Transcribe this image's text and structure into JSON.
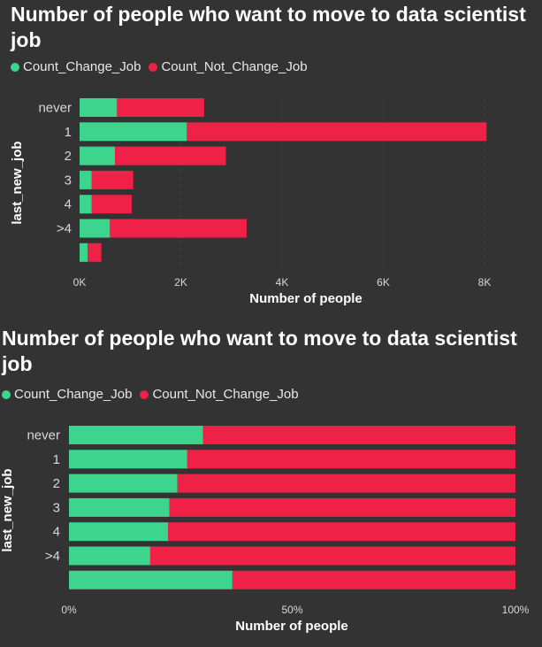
{
  "colors": {
    "change": "#3dd48e",
    "not_change": "#ef2146",
    "grid": "#4a4a4a",
    "tick": "#d8d8d8"
  },
  "chart_data": [
    {
      "type": "bar",
      "orientation": "horizontal",
      "stacked": true,
      "title": "Number of people who want to move to data scientist job",
      "xlabel": "Number of people",
      "ylabel": "last_new_job",
      "categories": [
        "never",
        "1",
        "2",
        "3",
        "4",
        ">4",
        ""
      ],
      "series": [
        {
          "name": "Count_Change_Job",
          "values": [
            740,
            2120,
            700,
            240,
            240,
            600,
            160
          ]
        },
        {
          "name": "Count_Not_Change_Job",
          "values": [
            1720,
            5920,
            2190,
            820,
            790,
            2700,
            270
          ]
        }
      ],
      "xlim": [
        0,
        8000
      ],
      "xticks": [
        "0K",
        "2K",
        "4K",
        "6K",
        "8K"
      ],
      "xtick_values": [
        0,
        2000,
        4000,
        6000,
        8000
      ],
      "grid": true,
      "legend_position": "top-left"
    },
    {
      "type": "bar",
      "orientation": "horizontal",
      "stacked": true,
      "percent": true,
      "title": "Number of people who want to move to data scientist job",
      "xlabel": "Number of people",
      "ylabel": "last_new_job",
      "categories": [
        "never",
        "1",
        "2",
        "3",
        "4",
        ">4",
        ""
      ],
      "series": [
        {
          "name": "Count_Change_Job",
          "values": [
            30,
            26.5,
            24.3,
            22.5,
            22.2,
            18.2,
            36.6
          ]
        },
        {
          "name": "Count_Not_Change_Job",
          "values": [
            70,
            73.5,
            75.7,
            77.5,
            77.8,
            81.8,
            63.4
          ]
        }
      ],
      "xlim": [
        0,
        100
      ],
      "xticks": [
        "0%",
        "50%",
        "100%"
      ],
      "xtick_values": [
        0,
        50,
        100
      ],
      "grid": false,
      "legend_position": "top-left"
    }
  ]
}
